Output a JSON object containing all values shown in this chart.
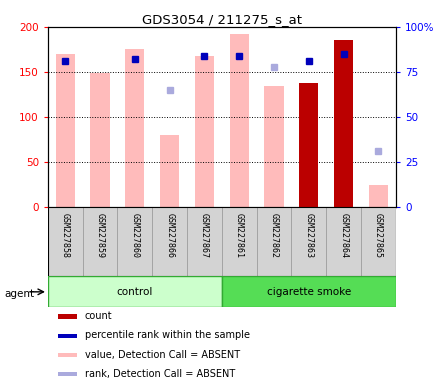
{
  "title": "GDS3054 / 211275_s_at",
  "samples": [
    "GSM227858",
    "GSM227859",
    "GSM227860",
    "GSM227866",
    "GSM227867",
    "GSM227861",
    "GSM227862",
    "GSM227863",
    "GSM227864",
    "GSM227865"
  ],
  "groups": [
    "control",
    "control",
    "control",
    "control",
    "control",
    "cigarette smoke",
    "cigarette smoke",
    "cigarette smoke",
    "cigarette smoke",
    "cigarette smoke"
  ],
  "value_absent": [
    170,
    149,
    175,
    80,
    168,
    192,
    134,
    null,
    null,
    25
  ],
  "rank_absent_pct": [
    null,
    null,
    null,
    65,
    null,
    null,
    78,
    null,
    null,
    31
  ],
  "count_present": [
    null,
    null,
    null,
    null,
    null,
    null,
    null,
    138,
    185,
    null
  ],
  "rank_present_pct": [
    81,
    null,
    82,
    null,
    84,
    84,
    null,
    81,
    85,
    null
  ],
  "ylim_left": [
    0,
    200
  ],
  "ylim_right": [
    0,
    100
  ],
  "yticks_left": [
    0,
    50,
    100,
    150,
    200
  ],
  "yticks_right": [
    0,
    25,
    50,
    75,
    100
  ],
  "yticklabels_left": [
    "0",
    "50",
    "100",
    "150",
    "200"
  ],
  "yticklabels_right": [
    "0",
    "25",
    "50",
    "75",
    "100%"
  ],
  "color_count": "#bb0000",
  "color_rank_present": "#0000bb",
  "color_value_absent": "#ffbbbb",
  "color_rank_absent": "#aaaadd",
  "color_control_bg": "#ccffcc",
  "color_smoke_bg": "#55dd55",
  "bar_width": 0.55,
  "control_label": "control",
  "smoke_label": "cigarette smoke",
  "agent_label": "agent",
  "n_control": 5,
  "n_smoke": 5
}
